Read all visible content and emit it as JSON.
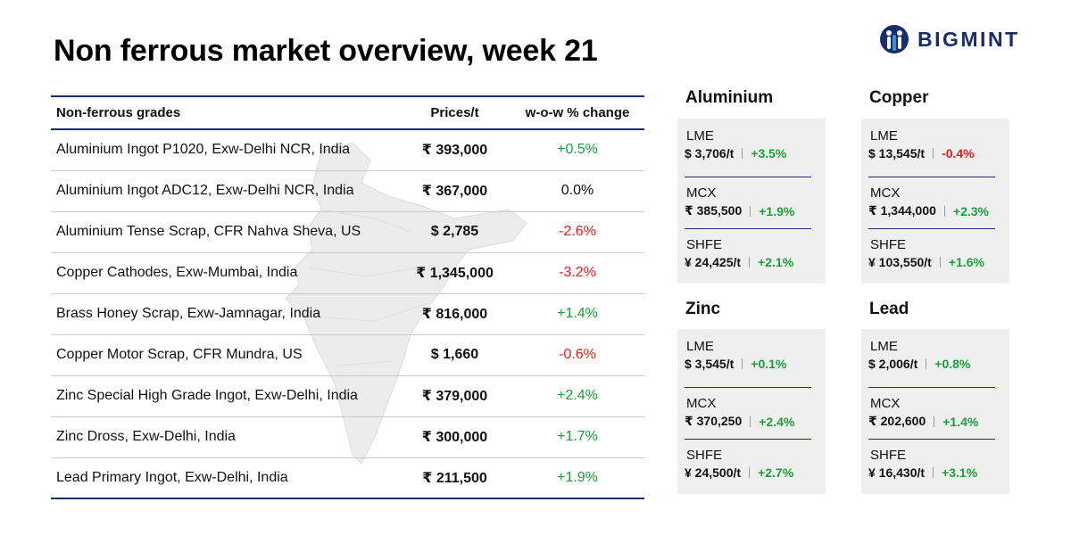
{
  "title": "Non ferrous market overview, week 21",
  "brand": "BIGMINT",
  "table": {
    "headers": [
      "Non-ferrous grades",
      "Prices/t",
      "w-o-w % change"
    ],
    "rows": [
      {
        "grade": "Aluminium Ingot P1020, Exw-Delhi NCR, India",
        "price": "₹ 393,000",
        "change": "+0.5%",
        "dir": "pos"
      },
      {
        "grade": "Aluminium Ingot ADC12, Exw-Delhi NCR, India",
        "price": "₹ 367,000",
        "change": "0.0%",
        "dir": "neu"
      },
      {
        "grade": "Aluminium Tense Scrap, CFR Nahva Sheva, US",
        "price": "$ 2,785",
        "change": "-2.6%",
        "dir": "neg"
      },
      {
        "grade": "Copper Cathodes, Exw-Mumbai, India",
        "price": "₹ 1,345,000",
        "change": "-3.2%",
        "dir": "neg"
      },
      {
        "grade": "Brass Honey Scrap, Exw-Jamnagar, India",
        "price": "₹ 816,000",
        "change": "+1.4%",
        "dir": "pos"
      },
      {
        "grade": "Copper Motor Scrap, CFR Mundra, US",
        "price": "$ 1,660",
        "change": "-0.6%",
        "dir": "neg"
      },
      {
        "grade": "Zinc Special High Grade Ingot, Exw-Delhi, India",
        "price": "₹ 379,000",
        "change": "+2.4%",
        "dir": "pos"
      },
      {
        "grade": "Zinc Dross, Exw-Delhi, India",
        "price": "₹ 300,000",
        "change": "+1.7%",
        "dir": "pos"
      },
      {
        "grade": "Lead Primary Ingot, Exw-Delhi, India",
        "price": "₹ 211,500",
        "change": "+1.9%",
        "dir": "pos"
      }
    ]
  },
  "metals": {
    "aluminium": {
      "name": "Aluminium",
      "lme": {
        "label": "LME",
        "price": "$ 3,706/t",
        "change": "+3.5%"
      },
      "mcx": {
        "label": "MCX",
        "price": "₹ 385,500",
        "change": "+1.9%"
      },
      "shfe": {
        "label": "SHFE",
        "price": "¥ 24,425/t",
        "change": "+2.1%"
      }
    },
    "copper": {
      "name": "Copper",
      "lme": {
        "label": "LME",
        "price": "$ 13,545/t",
        "change": "-0.4%"
      },
      "mcx": {
        "label": "MCX",
        "price": "₹ 1,344,000",
        "change": "+2.3%"
      },
      "shfe": {
        "label": "SHFE",
        "price": "¥ 103,550/t",
        "change": "+1.6%"
      }
    },
    "zinc": {
      "name": "Zinc",
      "lme": {
        "label": "LME",
        "price": "$ 3,545/t",
        "change": "+0.1%"
      },
      "mcx": {
        "label": "MCX",
        "price": "₹ 370,250",
        "change": "+2.4%"
      },
      "shfe": {
        "label": "SHFE",
        "price": "¥ 24,500/t",
        "change": "+2.7%"
      }
    },
    "lead": {
      "name": "Lead",
      "lme": {
        "label": "LME",
        "price": "$ 2,006/t",
        "change": "+0.8%"
      },
      "mcx": {
        "label": "MCX",
        "price": "₹ 202,600",
        "change": "+1.4%"
      },
      "shfe": {
        "label": "SHFE",
        "price": "¥ 16,430/t",
        "change": "+3.1%"
      }
    }
  },
  "colors": {
    "positive": "#1f9d3a",
    "negative": "#e02020",
    "brand": "#1a2d6b",
    "card_bg": "#efefef"
  },
  "icons": {
    "logo": "bigmint-logo-icon",
    "background": "india-map-icon"
  }
}
